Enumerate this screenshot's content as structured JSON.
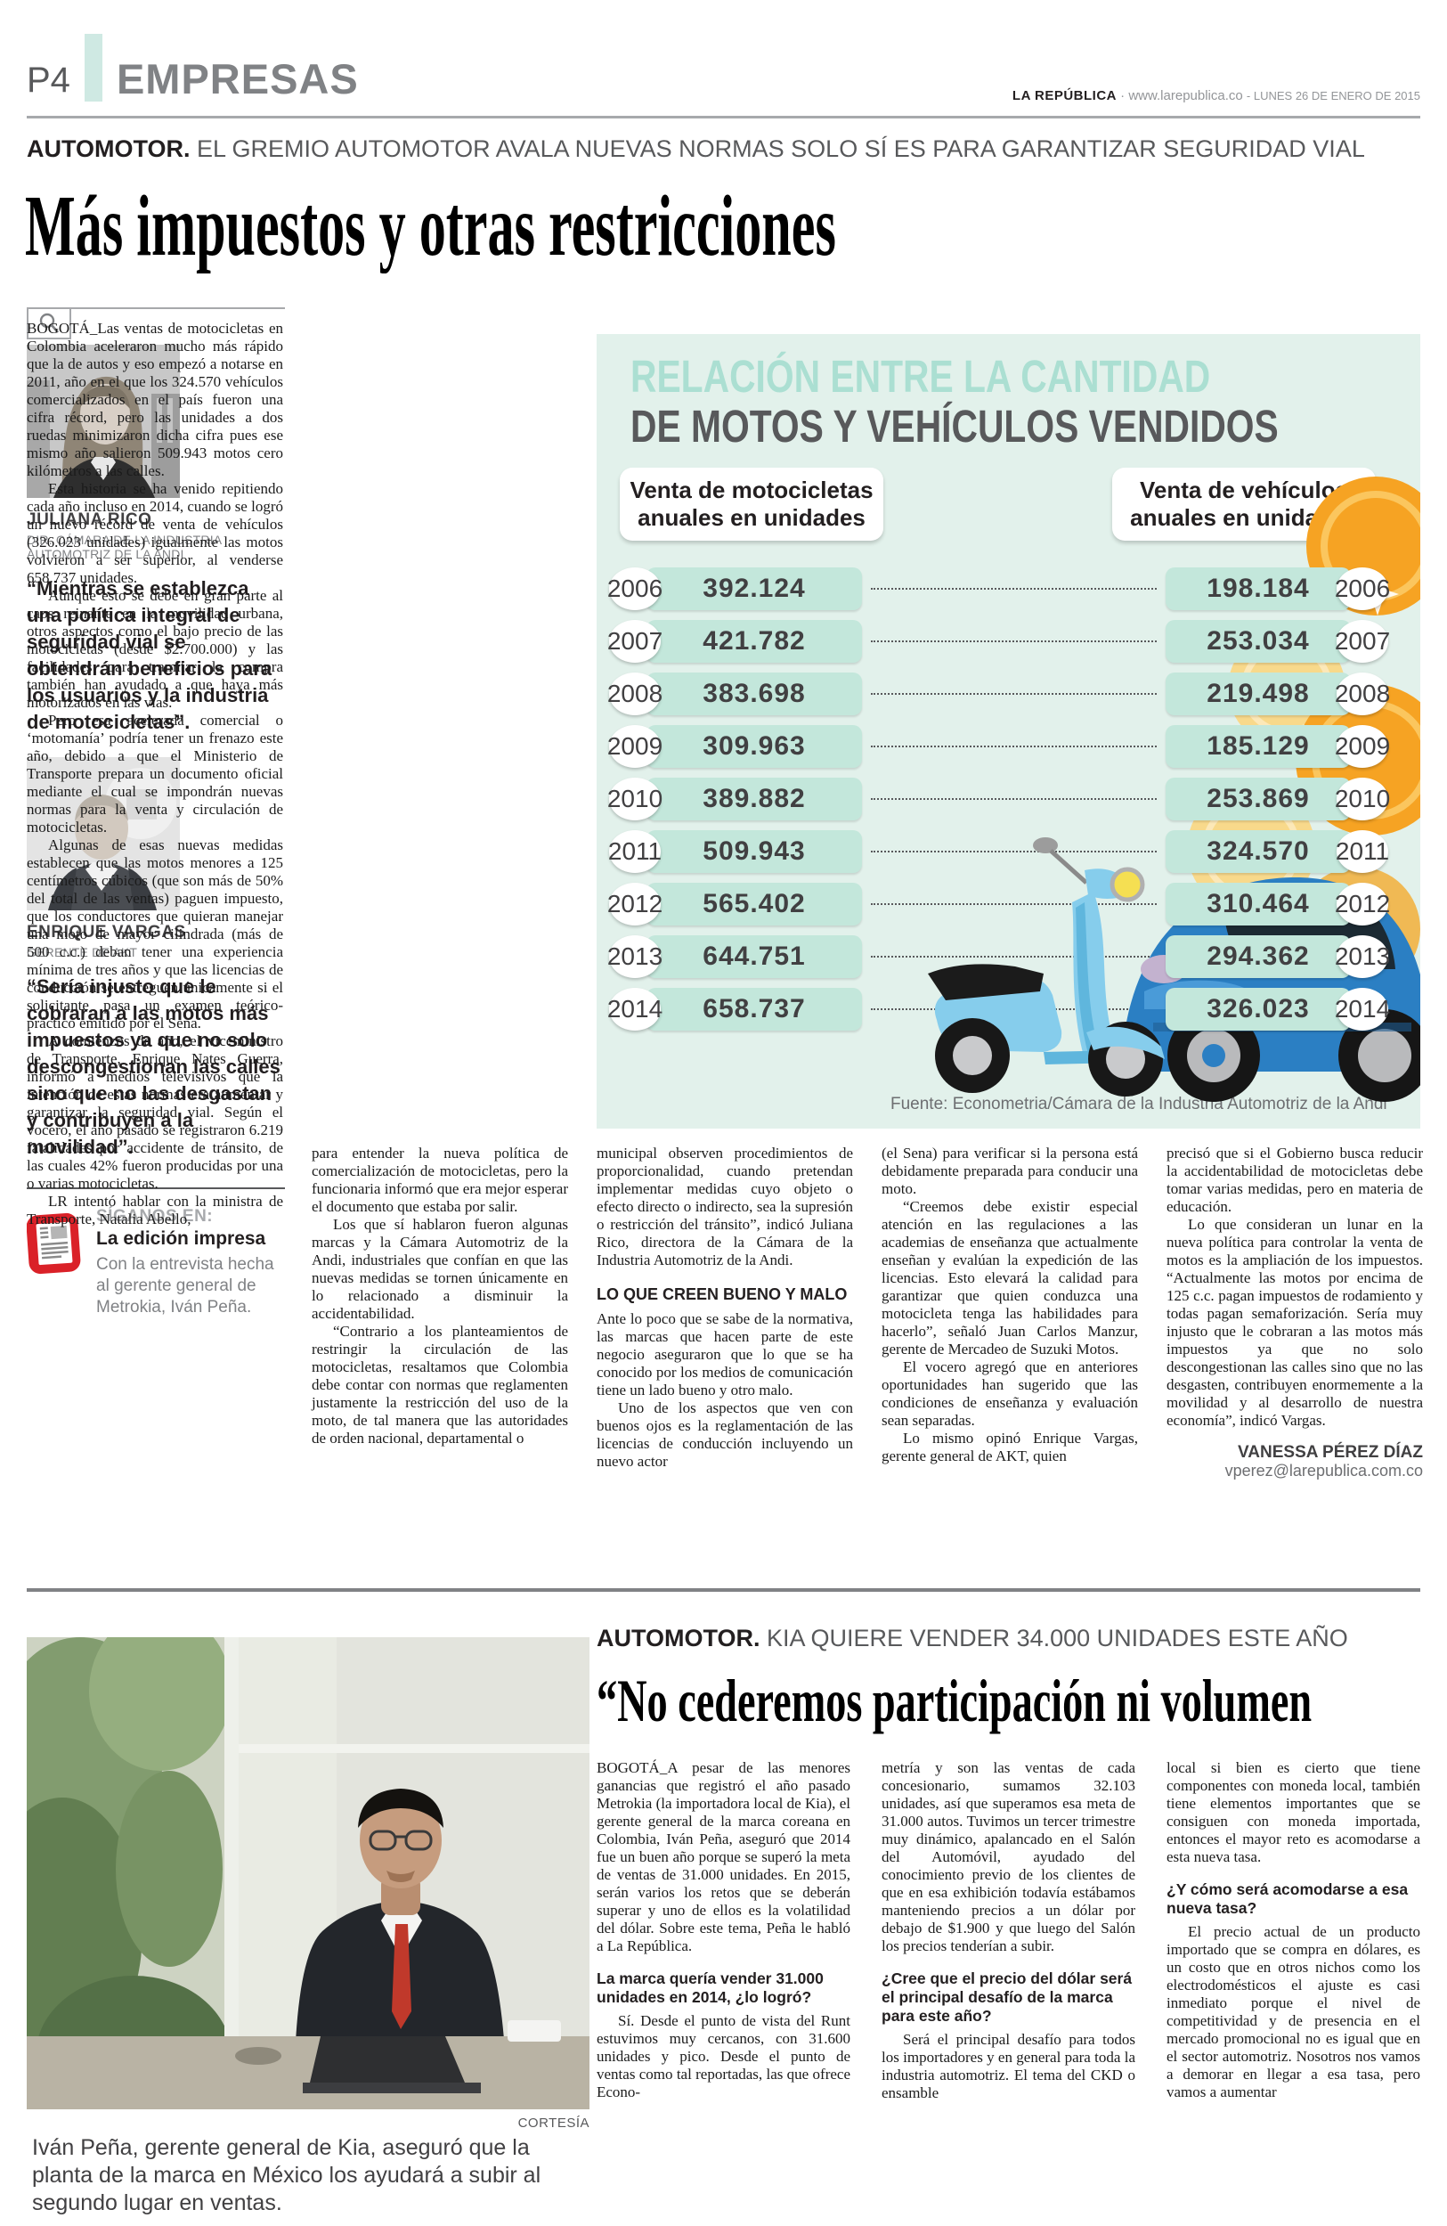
{
  "masthead": {
    "page_number": "P4",
    "section": "EMPRESAS",
    "brand": "LA REPÚBLICA",
    "site": " · www.larepublica.co ",
    "date": "- LUNES 26 DE ENERO DE 2015"
  },
  "article1": {
    "kicker_label": "AUTOMOTOR.",
    "kicker_text": " EL GREMIO AUTOMOTOR AVALA NUEVAS NORMAS SOLO SÍ ES PARA GARANTIZAR SEGURIDAD VIAL",
    "headline": "Más impuestos y otras restricciones",
    "col1_paragraphs": [
      "BOGOTÁ_Las ventas de motocicletas en Colombia aceleraron mucho más rápido que la de autos y eso empezó a notarse en 2011, año en el que los 324.570 vehículos comercializados en el país fueron una cifra récord, pero las unidades a dos ruedas minimizaron dicha cifra pues ese mismo año salieron 509.943 motos cero kilómetros a las calles.",
      "Esta historia se ha venido repitiendo cada año incluso en 2014, cuando se logró un nuevo récord de venta de vehículos (326.023 unidades) igualmente las motos volvieron a ser superior, al venderse 658.737 unidades.",
      "Aunque esto se debe en gran parte al caos reinante en la movilidad urbana, otros aspectos como el bajo precio de las motocicletas (desde $2.700.000) y las facilidades para tramitar la compra también han ayudado a que haya más motorizados en las vías.",
      "Pero esa acelerada comercial o ‘motomanía’ podría tener un frenazo este año, debido a que el Ministerio de Transporte prepara un documento oficial mediante el cual se impondrán nuevas normas para la venta y circulación de motocicletas.",
      "Algunas de esas nuevas medidas establecen que las motos menores a 125 centímetros cúbicos (que son más de 50% del total de las ventas) paguen impuesto, que los conductores que quieran manejar una moto de mayor cilindrada (más de 500 c.c.) deban tener una experiencia mínima de tres años y que las licencias de conducción se entreguen únicamente si el solicitante pasa un examen teórico-práctico emitido por el Sena.",
      "A comienzos de año, el viceministro de Transporte, Enrique Nates Guerra, informó a medios televisivos que la intención de estas normas era aumentar y garantizar la seguridad vial. Según el vocero, el año pasado se registraron 6.219 fatalidades por accidente de tránsito, de las cuales 42% fueron producidas por una o varias motocicletas.",
      "LR intentó hablar con la ministra de Transporte, Natalia Abello,"
    ],
    "profile1": {
      "name": "JULIANA RICO",
      "title": "DIR. CÁMARA DE LA INDUSTRIA AUTOMOTRIZ DE LA ANDI",
      "quote": "“Mientras se establezca una política integral de seguridad vial se obtendrán beneficios para los usuarios y la industria de motocicletas”."
    },
    "profile2": {
      "name": "ENRIQUE VARGAS",
      "title": "GERENTE DE AKT",
      "quote": "“Sería injusto que le cobraran a las motos más impuestos ya que no solo descongestionan las calles sino que no las desgastan y contribuyen a la movilidad”."
    },
    "siganos": {
      "label": "SÍGANOS EN:",
      "title": "La edición impresa",
      "text": "Con la entrevista hecha al gerente general de Metrokia, Iván Peña."
    },
    "col2_paragraphs": [
      "para entender la nueva política de comercialización de motocicletas, pero la funcionaria informó que era mejor esperar el documento que estaba por salir.",
      "Los que sí hablaron fueron algunas marcas y la Cámara Automotriz de la Andi, industriales que confían en que las nuevas medidas se tornen únicamente en lo relacionado a disminuir la accidentabilidad.",
      "“Contrario a los planteamientos de restringir la circulación de las motocicletas, resaltamos que Colombia debe contar con normas que reglamenten justamente la restricción del uso de la moto, de tal manera que las autoridades de orden nacional, departamental o"
    ],
    "col3_paragraphs_a": [
      "municipal observen procedimientos de proporcionalidad, cuando pretendan implementar medidas cuyo objeto o efecto directo o indirecto, sea la supresión o restricción del tránsito”, indicó Juliana Rico, directora de la Cámara de la Industria Automotriz de la Andi."
    ],
    "col3_subhead": "LO QUE CREEN BUENO Y MALO",
    "col3_paragraphs_b": [
      "Ante lo poco que se sabe de la normativa, las marcas que hacen parte de este negocio aseguraron que lo que se ha conocido por los medios de comunicación tiene un lado bueno y otro malo.",
      "Uno de los aspectos que ven con buenos ojos es la reglamentación de las licencias de conducción incluyendo un nuevo actor"
    ],
    "col4_paragraphs": [
      "(el Sena) para verificar si la persona está debidamente preparada para conducir una moto.",
      "“Creemos debe existir especial atención en las regulaciones a las academias de enseñanza que actualmente enseñan y evalúan la expedición de las licencias. Esto elevará la calidad para garantizar que quien conduzca una motocicleta tenga las habilidades para hacerlo”, señaló Juan Carlos Manzur, gerente de Mercadeo de Suzuki Motos.",
      "El vocero agregó que en anteriores oportunidades han sugerido que las condiciones de enseñanza y evaluación sean separadas.",
      "Lo mismo opinó Enrique Vargas, gerente general de AKT, quien"
    ],
    "col5_paragraphs": [
      "precisó que si el Gobierno busca reducir la accidentabilidad de motocicletas debe tomar varias medidas, pero en materia de educación.",
      "Lo que consideran un lunar en la nueva política para controlar la venta de motos es la ampliación de los impuestos. “Actualmente las motos por encima de 125 c.c. pagan impuestos de rodamiento y todas pagan semaforización. Sería muy injusto que le cobraran a las motos más impuestos ya que no solo descongestionan las calles sino que no las desgasten, contribuyen enormemente a la movilidad y al desarrollo de nuestra economía”, indicó Vargas."
    ],
    "byline": "VANESSA PÉREZ DÍAZ",
    "byline_email": "vperez@larepublica.com.co"
  },
  "chart_data": {
    "type": "bar",
    "title_line1": "RELACIÓN ENTRE LA CANTIDAD",
    "title_line2": "DE MOTOS Y VEHÍCULOS VENDIDOS",
    "left_label": "Venta de motocicletas anuales en unidades",
    "right_label": "Venta de vehículos anuales en unidades",
    "categories": [
      "2006",
      "2007",
      "2008",
      "2009",
      "2010",
      "2011",
      "2012",
      "2013",
      "2014"
    ],
    "series": [
      {
        "name": "Venta de motocicletas anuales en unidades",
        "values": [
          392124,
          421782,
          383698,
          309963,
          389882,
          509943,
          565402,
          644751,
          658737
        ]
      },
      {
        "name": "Venta de vehículos anuales en unidades",
        "values": [
          198184,
          253034,
          219498,
          185129,
          253869,
          324570,
          310464,
          294362,
          326023
        ]
      }
    ],
    "value_labels_left": [
      "392.124",
      "421.782",
      "383.698",
      "309.963",
      "389.882",
      "509.943",
      "565.402",
      "644.751",
      "658.737"
    ],
    "value_labels_right": [
      "198.184",
      "253.034",
      "219.498",
      "185.129",
      "253.869",
      "324.570",
      "310.464",
      "294.362",
      "326.023"
    ],
    "source": "Fuente: Econometria/Cámara de la Industria Automotriz de la Andi",
    "colors": {
      "background": "#e2f1eb",
      "bar": "#c3e7db",
      "title_accent": "#abdfd2",
      "title_dark": "#58595b",
      "scooter": "#86cdec",
      "car": "#2b7fc3",
      "coin": "#f6a323"
    },
    "legend_position": "none",
    "grid": false
  },
  "article2": {
    "kicker_label": "AUTOMOTOR.",
    "kicker_text": " KIA QUIERE VENDER 34.000 UNIDADES ESTE AÑO",
    "headline": "“No cederemos participación ni volumen",
    "photo_credit": "CORTESÍA",
    "photo_caption": "Iván Peña, gerente general de Kia, aseguró que la planta de la marca en México los ayudará a subir al segundo lugar en ventas.",
    "col1_p1": "BOGOTÁ_A pesar de las menores ganancias que registró el año pasado Metrokia (la importadora local de Kia), el gerente general de la marca coreana en Colombia, Iván Peña, aseguró que 2014 fue un buen año porque se superó la meta de ventas de 31.000 unidades. En 2015, serán varios los retos que se deberán superar y uno de ellos es la volatilidad del dólar. Sobre este tema, Peña le habló a La República.",
    "q1": "La marca quería vender 31.000 unidades en 2014, ¿lo logró?",
    "a1": "Sí. Desde el punto de vista del Runt estuvimos muy cercanos, con 31.600 unidades y pico. Desde el punto de ventas como tal reportadas, las que ofrece Econo-",
    "a1_cont": "metría y son las ventas de cada concesionario, sumamos 32.103 unidades, así que superamos esa meta de 31.000 autos. Tuvimos un tercer trimestre muy dinámico, apalancado en el Salón del Automóvil, ayudado del conocimiento previo de los clientes de que en esa exhibición todavía estábamos manteniendo precios a un dólar por debajo de $1.900 y que luego del Salón los precios tenderían a subir.",
    "q2": "¿Cree que el precio del dólar será el principal desafío de la marca para este año?",
    "a2": "Será el principal desafío para todos los importadores y en general para toda la industria automotriz. El tema del CKD o ensamble",
    "a2_cont": "local si bien es cierto que tiene componentes con moneda local, también tiene elementos importantes que se consiguen con moneda importada, entonces el mayor reto es acomodarse a esta nueva tasa.",
    "q3": "¿Y cómo será acomodarse a esa nueva tasa?",
    "a3": "El precio actual de un producto importado que se compra en dólares, es un costo que en otros nichos como los electrodomésticos el ajuste es casi inmediato porque el nivel de competitividad y de presencia en el mercado promocional no es igual que en el sector automotriz. Nosotros nos vamos a demorar en llegar a esa tasa, pero vamos a aumentar"
  }
}
